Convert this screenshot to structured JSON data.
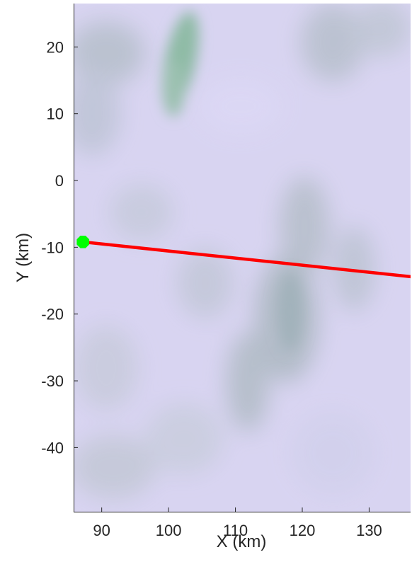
{
  "chart_data": {
    "type": "line",
    "title": "",
    "xlabel": "X (km)",
    "ylabel": "Y (km)",
    "xlim": [
      85.8,
      136.2
    ],
    "ylim": [
      -49.6,
      26.5
    ],
    "xticks": [
      90,
      100,
      110,
      120,
      130
    ],
    "xtick_labels": [
      "90",
      "100",
      "110",
      "120",
      "130"
    ],
    "yticks": [
      20,
      10,
      0,
      -10,
      -20,
      -30,
      -40
    ],
    "ytick_labels": [
      "20",
      "10",
      "0",
      "-10",
      "-20",
      "-30",
      "-40"
    ],
    "grid": false,
    "legend": "none",
    "background": "terrain imagery (pale lavender with darker grey-green patches)",
    "series": [
      {
        "x": [
          87.2,
          136.2
        ],
        "y": [
          -9.2,
          -14.4
        ],
        "color": "#ff0000"
      }
    ],
    "markers": [
      {
        "x": 87.2,
        "y": -9.2,
        "shape": "octagon",
        "color": "#00ff00"
      }
    ],
    "colors": {
      "line": "#ff0000",
      "marker": "#00ff00",
      "map_base": "#d6d2f0",
      "map_dark": "#a6b5b8",
      "map_green": "#7fb59b",
      "axis": "#262626"
    }
  }
}
